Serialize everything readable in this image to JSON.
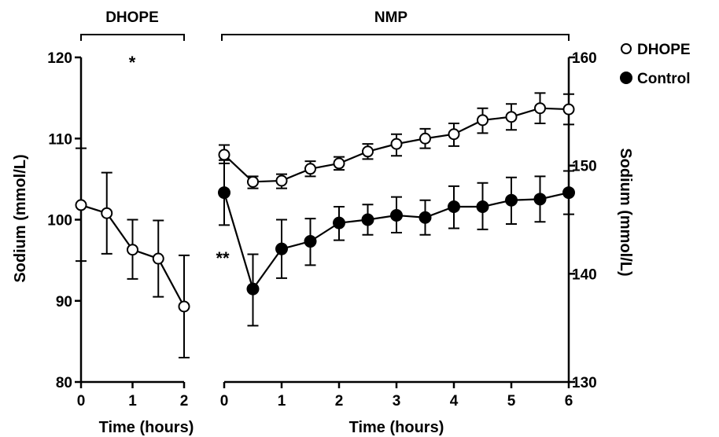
{
  "chart_data": [
    {
      "type": "line",
      "section_label": "DHOPE",
      "xlabel": "Time (hours)",
      "ylabel": "Sodium (mmol/L)",
      "xlim": [
        0,
        2
      ],
      "ylim": [
        80,
        120
      ],
      "x_ticks": [
        "0",
        "1",
        "2"
      ],
      "y_ticks": [
        "80",
        "90",
        "100",
        "110",
        "120"
      ],
      "annotation": "*",
      "series": [
        {
          "name": "DHOPE",
          "marker": "open-circle",
          "x": [
            0,
            0.5,
            1,
            1.5,
            2
          ],
          "y": [
            101.8,
            100.8,
            96.3,
            95.2,
            89.3
          ],
          "err_low": [
            94.9,
            95.8,
            92.7,
            90.5,
            83.0
          ],
          "err_high": [
            108.8,
            105.8,
            100.0,
            99.9,
            95.6
          ]
        }
      ]
    },
    {
      "type": "line",
      "section_label": "NMP",
      "xlabel": "Time (hours)",
      "ylabel": "Sodium (mmol/L)",
      "xlim": [
        0,
        6
      ],
      "ylim": [
        130,
        160
      ],
      "x_ticks": [
        "0",
        "1",
        "2",
        "3",
        "4",
        "5",
        "6"
      ],
      "y_ticks": [
        "130",
        "140",
        "150",
        "160"
      ],
      "annotation": "**",
      "legend_position": "top-right",
      "series": [
        {
          "name": "DHOPE",
          "marker": "open-circle",
          "x": [
            0,
            0.5,
            1,
            1.5,
            2,
            2.5,
            3,
            3.5,
            4,
            4.5,
            5,
            5.5,
            6
          ],
          "y": [
            151.0,
            148.5,
            148.6,
            149.7,
            150.2,
            151.3,
            152.0,
            152.5,
            152.9,
            154.2,
            154.5,
            155.3,
            155.2
          ],
          "err_low": [
            150.2,
            147.9,
            147.9,
            149.0,
            149.6,
            150.6,
            150.9,
            151.6,
            151.8,
            153.0,
            153.3,
            153.9,
            153.8
          ],
          "err_high": [
            151.9,
            149.0,
            149.2,
            150.4,
            150.8,
            152.0,
            152.9,
            153.4,
            153.9,
            155.3,
            155.7,
            156.7,
            156.6
          ]
        },
        {
          "name": "Control",
          "marker": "filled-circle",
          "x": [
            0,
            0.5,
            1,
            1.5,
            2,
            2.5,
            3,
            3.5,
            4,
            4.5,
            5,
            5.5,
            6
          ],
          "y": [
            147.5,
            138.6,
            142.3,
            143.0,
            144.7,
            145.0,
            145.4,
            145.2,
            146.2,
            146.2,
            146.8,
            146.9,
            147.5
          ],
          "err_low": [
            144.5,
            135.2,
            139.6,
            140.8,
            143.1,
            143.6,
            143.8,
            143.6,
            144.2,
            144.1,
            144.6,
            144.8,
            145.5
          ],
          "err_high": [
            150.5,
            141.8,
            145.0,
            145.1,
            146.2,
            146.4,
            147.1,
            146.8,
            148.1,
            148.4,
            148.9,
            149.0,
            149.5
          ]
        }
      ]
    }
  ]
}
